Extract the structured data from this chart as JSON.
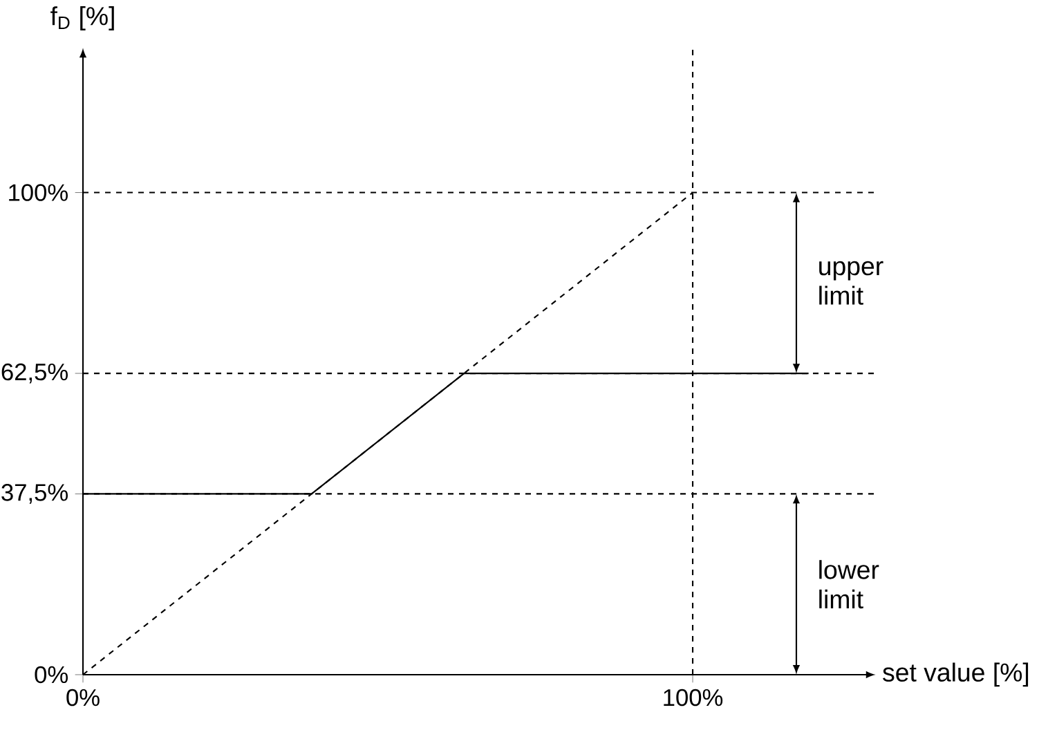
{
  "chart_data": {
    "type": "line",
    "xlabel": "set value [%]",
    "ylabel": "f$_{D}$ [%]",
    "xlim": [
      0,
      130
    ],
    "ylim": [
      0,
      130
    ],
    "xticks": [
      {
        "value": 0,
        "label": "0%"
      },
      {
        "value": 100,
        "label": "100%"
      }
    ],
    "yticks": [
      {
        "value": 0,
        "label": "0%"
      },
      {
        "value": 37.5,
        "label": "37,5%"
      },
      {
        "value": 62.5,
        "label": "62,5%"
      },
      {
        "value": 100,
        "label": "100%"
      }
    ],
    "series": [
      {
        "color": "#000000",
        "line_style": "dashed",
        "x": [
          0,
          100
        ],
        "values": [
          0,
          100
        ]
      },
      {
        "color": "#000000",
        "line_style": "solid",
        "x": [
          0,
          37.5,
          62.5,
          119
        ],
        "values": [
          37.5,
          37.5,
          62.5,
          62.5
        ]
      }
    ],
    "ref_lines": [
      {
        "axis": "y",
        "value": 100,
        "line_style": "dashed"
      },
      {
        "axis": "y",
        "value": 62.5,
        "line_style": "dashed"
      },
      {
        "axis": "y",
        "value": 37.5,
        "line_style": "dashed"
      },
      {
        "axis": "x",
        "value": 100,
        "line_style": "dashed"
      }
    ],
    "annotations": [
      "upper limit",
      "lower limit"
    ],
    "marker": "none"
  }
}
